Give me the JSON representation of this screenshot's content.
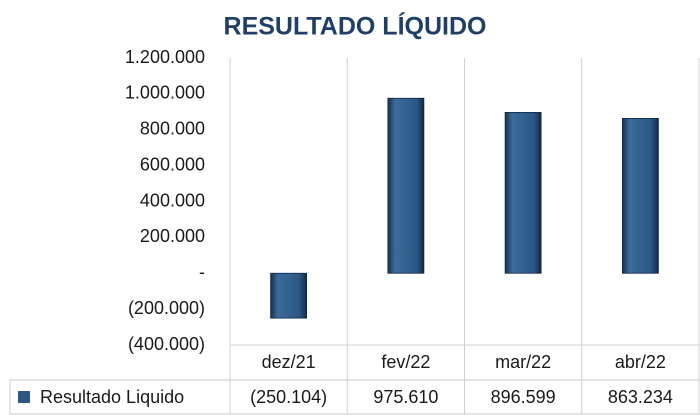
{
  "chart_data": {
    "type": "bar",
    "title": "RESULTADO LÍQUIDO",
    "categories": [
      "dez/21",
      "fev/22",
      "mar/22",
      "abr/22"
    ],
    "series": [
      {
        "name": "Resultado Liquido",
        "color": "#2a5783",
        "values": [
          -250104,
          975610,
          896599,
          863234
        ],
        "value_labels": [
          "(250.104)",
          "975.610",
          "896.599",
          "863.234"
        ]
      }
    ],
    "ylim": [
      -400000,
      1200000
    ],
    "yticks": [
      {
        "value": -400000,
        "label": "(400.000)"
      },
      {
        "value": -200000,
        "label": "(200.000)"
      },
      {
        "value": 0,
        "label": "-"
      },
      {
        "value": 200000,
        "label": "200.000"
      },
      {
        "value": 400000,
        "label": "400.000"
      },
      {
        "value": 600000,
        "label": "600.000"
      },
      {
        "value": 800000,
        "label": "800.000"
      },
      {
        "value": 1000000,
        "label": "1.000.000"
      },
      {
        "value": 1200000,
        "label": "1.200.000"
      }
    ]
  }
}
